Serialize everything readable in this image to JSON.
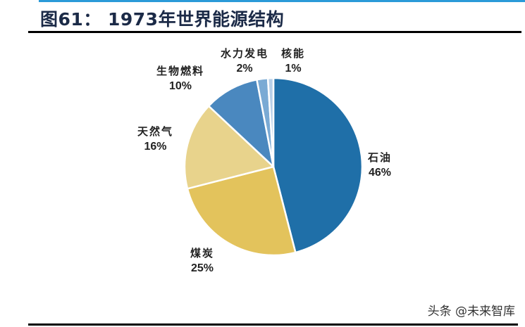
{
  "header": {
    "title": "图61： 1973年世界能源结构"
  },
  "chart_data": {
    "type": "pie",
    "title": "1973年世界能源结构",
    "figure_number": "图61",
    "start_angle": "12 o'clock",
    "direction": "clockwise",
    "slices": [
      {
        "label": "石油",
        "value": 46,
        "pct_label": "46%",
        "color": "#1f6fa8"
      },
      {
        "label": "煤炭",
        "value": 25,
        "pct_label": "25%",
        "color": "#e3c35c"
      },
      {
        "label": "天然气",
        "value": 16,
        "pct_label": "16%",
        "color": "#e8d38c"
      },
      {
        "label": "生物燃料",
        "value": 10,
        "pct_label": "10%",
        "color": "#4a88bf"
      },
      {
        "label": "水力发电",
        "value": 2,
        "pct_label": "2%",
        "color": "#7aaad4"
      },
      {
        "label": "核能",
        "value": 1,
        "pct_label": "1%",
        "color": "#b7cfe8"
      }
    ],
    "legend": "none (direct labels)"
  },
  "footer": {
    "watermark": "头条 @未来智库"
  }
}
